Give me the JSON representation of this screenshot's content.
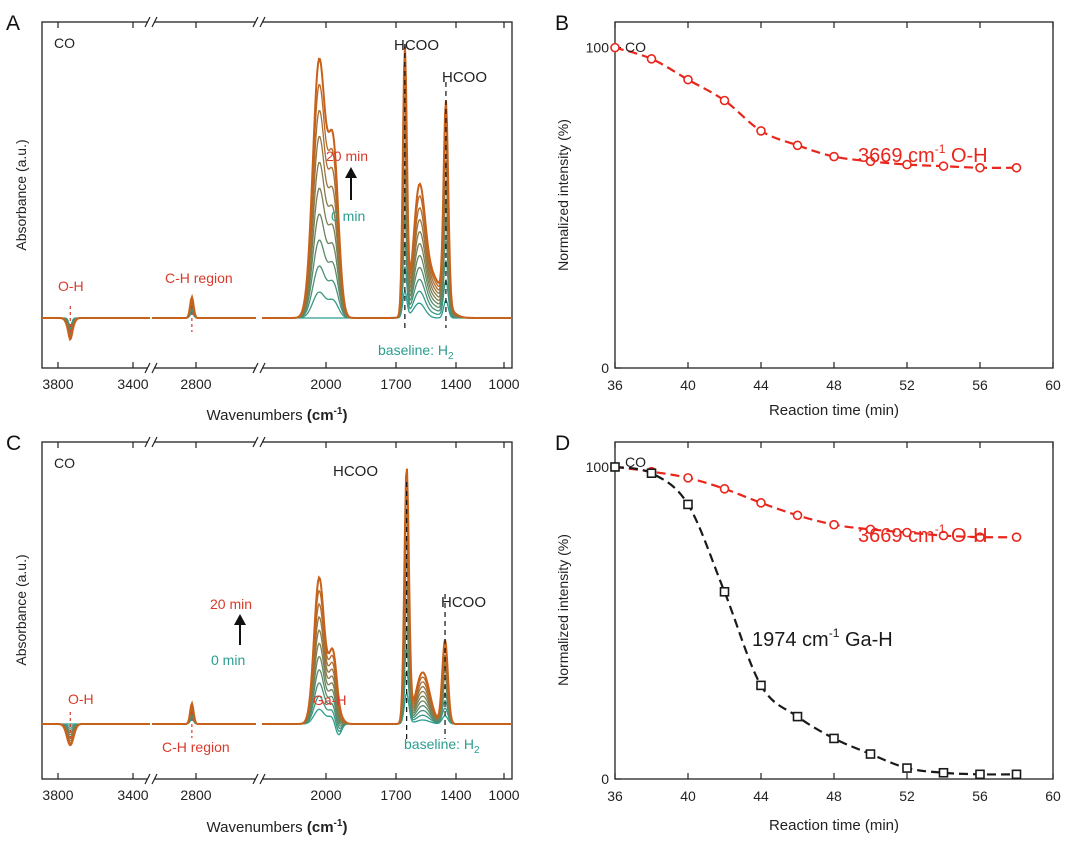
{
  "chart_data": [
    {
      "panel": "A",
      "type": "line",
      "title": "CO",
      "xlabel": "Wavenumbers",
      "xunit_base": "(cm",
      "xunit_sup": "-1",
      "xunit_end": ")",
      "ylabel": "Absorbance (a.u.)",
      "x_ticks": [
        "3800",
        "3400",
        "2800",
        "2000",
        "1700",
        "1400",
        "1000"
      ],
      "annotations": {
        "oh": "O-H",
        "ch": "C-H region",
        "hcoo1": "HCOO",
        "hcoo2": "HCOO",
        "time_top": "20 min",
        "time_bottom": "0 min",
        "baseline": "baseline: H",
        "baseline_sub": "2"
      },
      "series_times_min": [
        0,
        2,
        4,
        6,
        8,
        10,
        12,
        14,
        16,
        18,
        20
      ],
      "color_start": "#2a9d8f",
      "color_end": "#c8621b"
    },
    {
      "panel": "B",
      "type": "line",
      "title": "CO",
      "xlabel": "Reaction time (min)",
      "ylabel": "Normalized intensity (%)",
      "xlim": [
        36,
        60
      ],
      "ylim": [
        0,
        108
      ],
      "x_ticks": [
        "36",
        "40",
        "44",
        "48",
        "52",
        "56",
        "60"
      ],
      "y_ticks": [
        "0",
        "100"
      ],
      "y_tick_values": [
        0,
        100
      ],
      "series": [
        {
          "name": "3669 cm-1 O-H",
          "label_base": "3669 cm",
          "label_sup": "-1",
          "label_end": " O-H",
          "color": "#e8261c",
          "marker": "circle",
          "x": [
            36,
            38,
            40,
            42,
            44,
            46,
            48,
            50,
            52,
            54,
            56,
            58
          ],
          "y": [
            100,
            96.5,
            90,
            83.5,
            74,
            69.5,
            66,
            64.5,
            63.5,
            63,
            62.5,
            62.5
          ]
        }
      ]
    },
    {
      "panel": "C",
      "type": "line",
      "title": "CO",
      "xlabel": "Wavenumbers",
      "xunit_base": "(cm",
      "xunit_sup": "-1",
      "xunit_end": ")",
      "ylabel": "Absorbance (a.u.)",
      "x_ticks": [
        "3800",
        "3400",
        "2800",
        "2000",
        "1700",
        "1400",
        "1000"
      ],
      "annotations": {
        "oh": "O-H",
        "ch": "C-H region",
        "gah": "Ga-H",
        "hcoo1": "HCOO",
        "hcoo2": "HCOO",
        "time_top": "20 min",
        "time_bottom": "0 min",
        "baseline": "baseline: H",
        "baseline_sub": "2"
      },
      "series_times_min": [
        0,
        2,
        4,
        6,
        8,
        10,
        12,
        14,
        16,
        18,
        20
      ],
      "color_start": "#2a9d8f",
      "color_end": "#c8621b"
    },
    {
      "panel": "D",
      "type": "line",
      "title": "CO",
      "xlabel": "Reaction time (min)",
      "ylabel": "Normalized intensity (%)",
      "xlim": [
        36,
        60
      ],
      "ylim": [
        0,
        108
      ],
      "x_ticks": [
        "36",
        "40",
        "44",
        "48",
        "52",
        "56",
        "60"
      ],
      "y_ticks": [
        "0",
        "100"
      ],
      "y_tick_values": [
        0,
        100
      ],
      "series": [
        {
          "name": "3669 cm-1 O-H",
          "label_base": "3669 cm",
          "label_sup": "-1",
          "label_end": " O-H",
          "color": "#e8261c",
          "marker": "circle",
          "x": [
            36,
            38,
            40,
            42,
            44,
            46,
            48,
            50,
            52,
            54,
            56,
            58
          ],
          "y": [
            100,
            98.5,
            96.5,
            93,
            88.5,
            84.5,
            81.5,
            80,
            79,
            78,
            77.5,
            77.5
          ]
        },
        {
          "name": "1974 cm-1 Ga-H",
          "label_base": "1974 cm",
          "label_sup": "-1",
          "label_end": " Ga-H",
          "color": "#1a1a1a",
          "marker": "square",
          "x": [
            36,
            38,
            40,
            42,
            44,
            46,
            48,
            50,
            52,
            54,
            56,
            58
          ],
          "y": [
            100,
            98,
            88,
            60,
            30,
            20,
            13,
            8,
            3.5,
            2,
            1.5,
            1.5
          ]
        }
      ]
    }
  ],
  "panel_letters": [
    "A",
    "B",
    "C",
    "D"
  ]
}
